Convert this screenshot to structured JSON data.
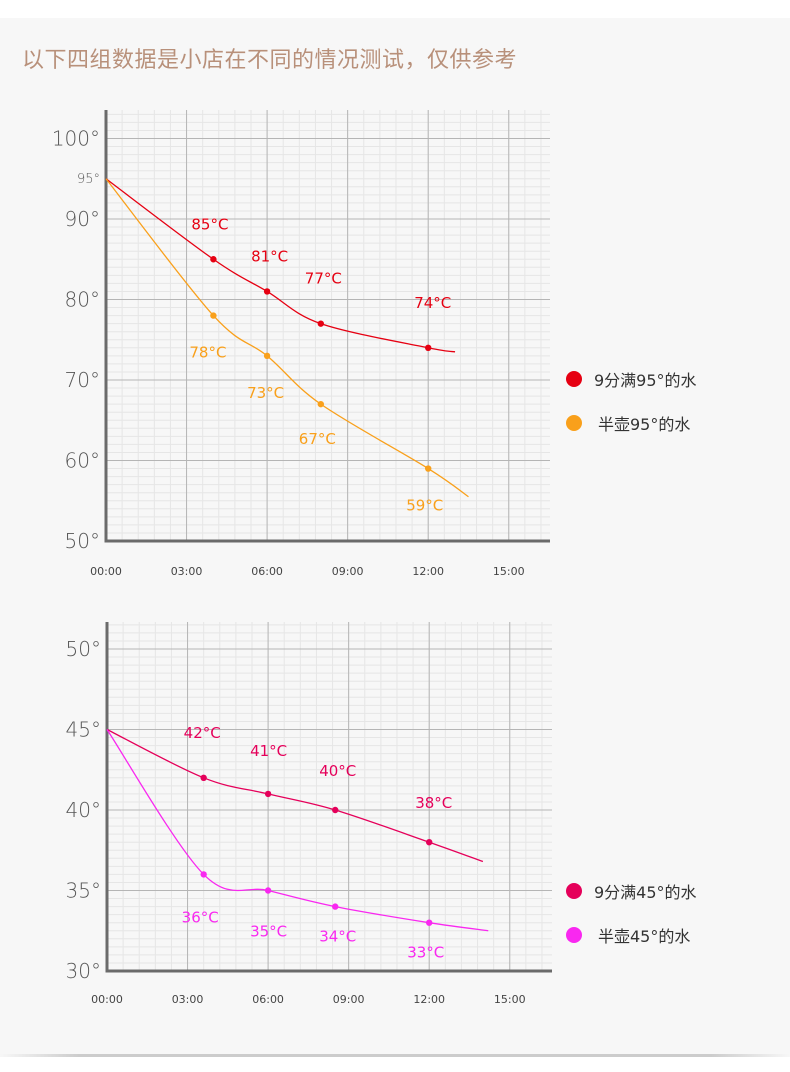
{
  "title": "以下四组数据是小店在不同的情况测试，仅供参考",
  "chart_data": [
    {
      "type": "line",
      "x_ticks": [
        "00:00",
        "03:00",
        "06:00",
        "09:00",
        "12:00",
        "15:00"
      ],
      "xlim": [
        0,
        16
      ],
      "y_ticks": [
        "100°",
        "95°",
        "90°",
        "80°",
        "70°",
        "60°",
        "50°"
      ],
      "y_tick_values": [
        100,
        95,
        90,
        80,
        70,
        60,
        50
      ],
      "ylim": [
        50,
        100
      ],
      "grid": true,
      "legend_placement": "right",
      "series": [
        {
          "name": "9分满95°的水",
          "color": "#e60012",
          "points": [
            [
              0,
              95
            ],
            [
              4,
              85
            ],
            [
              6,
              81
            ],
            [
              8,
              77
            ],
            [
              12,
              74
            ],
            [
              13,
              73.5
            ]
          ],
          "labeled": [
            {
              "x": 4,
              "y": 85,
              "label": "85°C"
            },
            {
              "x": 6,
              "y": 81,
              "label": "81°C"
            },
            {
              "x": 8,
              "y": 77,
              "label": "77°C"
            },
            {
              "x": 12,
              "y": 74,
              "label": "74°C"
            }
          ]
        },
        {
          "name": "半壶95°的水",
          "color": "#f9a01b",
          "points": [
            [
              0,
              95
            ],
            [
              4,
              78
            ],
            [
              6,
              73
            ],
            [
              8,
              67
            ],
            [
              12,
              59
            ],
            [
              13.5,
              55.5
            ]
          ],
          "labeled": [
            {
              "x": 4,
              "y": 78,
              "label": "78°C"
            },
            {
              "x": 6,
              "y": 73,
              "label": "73°C"
            },
            {
              "x": 8,
              "y": 67,
              "label": "67°C"
            },
            {
              "x": 12,
              "y": 59,
              "label": "59°C"
            }
          ]
        }
      ]
    },
    {
      "type": "line",
      "x_ticks": [
        "00:00",
        "03:00",
        "06:00",
        "09:00",
        "12:00",
        "15:00"
      ],
      "xlim": [
        0,
        16
      ],
      "y_ticks": [
        "50°",
        "45°",
        "40°",
        "35°",
        "30°"
      ],
      "y_tick_values": [
        50,
        45,
        40,
        35,
        30
      ],
      "ylim": [
        30,
        51.7
      ],
      "grid": true,
      "legend_placement": "right",
      "series": [
        {
          "name": "9分满45°的水",
          "color": "#e5005a",
          "points": [
            [
              0,
              45
            ],
            [
              3.6,
              42
            ],
            [
              6,
              41
            ],
            [
              8.5,
              40
            ],
            [
              12,
              38
            ],
            [
              14,
              36.8
            ]
          ],
          "labeled": [
            {
              "x": 3.6,
              "y": 42,
              "label": "42°C"
            },
            {
              "x": 6,
              "y": 41,
              "label": "41°C"
            },
            {
              "x": 8.5,
              "y": 40,
              "label": "40°C"
            },
            {
              "x": 12,
              "y": 38,
              "label": "38°C"
            }
          ]
        },
        {
          "name": "半壶45°的水",
          "color": "#f928f0",
          "points": [
            [
              0,
              45
            ],
            [
              3.6,
              36
            ],
            [
              6,
              35
            ],
            [
              8.5,
              34
            ],
            [
              12,
              33
            ],
            [
              14.2,
              32.5
            ]
          ],
          "labeled": [
            {
              "x": 3.6,
              "y": 36,
              "label": "36°C"
            },
            {
              "x": 6,
              "y": 35,
              "label": "35°C"
            },
            {
              "x": 8.5,
              "y": 34,
              "label": "34°C"
            },
            {
              "x": 12,
              "y": 33,
              "label": "33°C"
            }
          ]
        }
      ]
    }
  ]
}
